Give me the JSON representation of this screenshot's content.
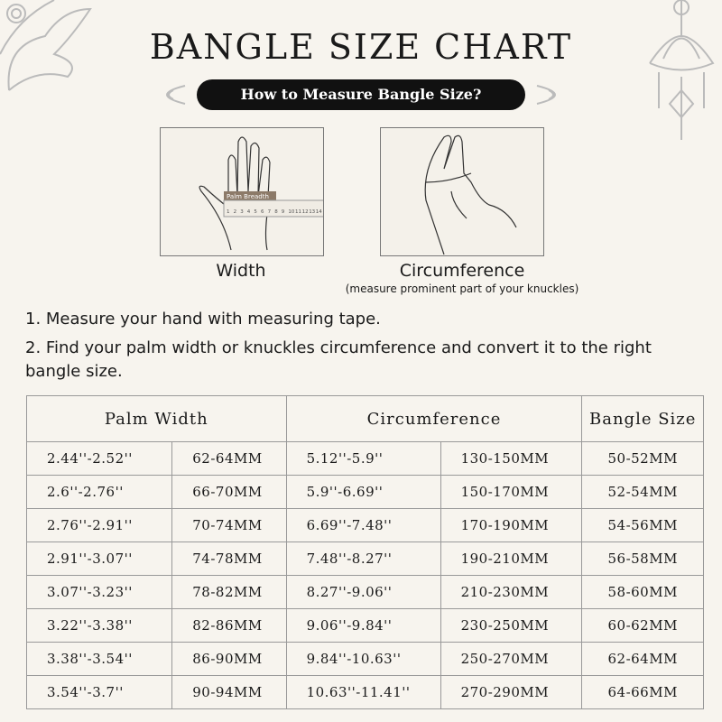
{
  "header": {
    "title": "BANGLE SIZE CHART",
    "subtitle": "How to Measure Bangle Size?"
  },
  "illustrations": {
    "width_label": "Width",
    "circumference_label": "Circumference",
    "circumference_note": "(measure prominent part of your knuckles)",
    "ruler_label": "Palm Breadth",
    "ruler_numbers": [
      1,
      2,
      3,
      4,
      5,
      6,
      7,
      8,
      9,
      10,
      11,
      12,
      13,
      14
    ]
  },
  "instructions": [
    "1. Measure your hand with measuring tape.",
    "2. Find your palm width or knuckles circumference and convert it to the right bangle size."
  ],
  "table": {
    "headers": [
      "Palm Width",
      "Circumference",
      "Bangle Size"
    ],
    "rows": [
      [
        "2.44''-2.52''",
        "62-64MM",
        "5.12''-5.9''",
        "130-150MM",
        "50-52MM"
      ],
      [
        "2.6''-2.76''",
        "66-70MM",
        "5.9''-6.69''",
        "150-170MM",
        "52-54MM"
      ],
      [
        "2.76''-2.91''",
        "70-74MM",
        "6.69''-7.48''",
        "170-190MM",
        "54-56MM"
      ],
      [
        "2.91''-3.07''",
        "74-78MM",
        "7.48''-8.27''",
        "190-210MM",
        "56-58MM"
      ],
      [
        "3.07''-3.23''",
        "78-82MM",
        "8.27''-9.06''",
        "210-230MM",
        "58-60MM"
      ],
      [
        "3.22''-3.38''",
        "82-86MM",
        "9.06''-9.84''",
        "230-250MM",
        "60-62MM"
      ],
      [
        "3.38''-3.54''",
        "86-90MM",
        "9.84''-10.63''",
        "250-270MM",
        "62-64MM"
      ],
      [
        "3.54''-3.7''",
        "90-94MM",
        "10.63''-11.41''",
        "270-290MM",
        "64-66MM"
      ]
    ]
  }
}
